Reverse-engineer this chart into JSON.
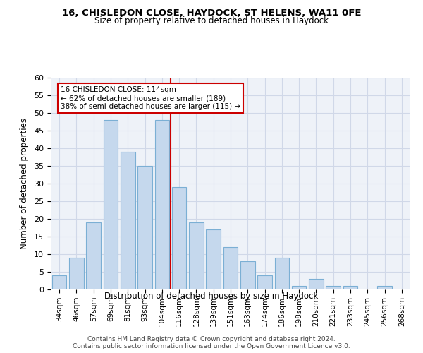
{
  "title1": "16, CHISLEDON CLOSE, HAYDOCK, ST HELENS, WA11 0FE",
  "title2": "Size of property relative to detached houses in Haydock",
  "xlabel": "Distribution of detached houses by size in Haydock",
  "ylabel": "Number of detached properties",
  "footer": "Contains HM Land Registry data © Crown copyright and database right 2024.\nContains public sector information licensed under the Open Government Licence v3.0.",
  "bar_labels": [
    "34sqm",
    "46sqm",
    "57sqm",
    "69sqm",
    "81sqm",
    "93sqm",
    "104sqm",
    "116sqm",
    "128sqm",
    "139sqm",
    "151sqm",
    "163sqm",
    "174sqm",
    "186sqm",
    "198sqm",
    "210sqm",
    "221sqm",
    "233sqm",
    "245sqm",
    "256sqm",
    "268sqm"
  ],
  "bar_values": [
    4,
    9,
    19,
    48,
    39,
    35,
    48,
    29,
    19,
    17,
    12,
    8,
    4,
    9,
    1,
    3,
    1,
    1,
    0,
    1,
    0
  ],
  "bar_color": "#c5d8ed",
  "bar_edge_color": "#7bafd4",
  "grid_color": "#d0d8e8",
  "bg_color": "#eef2f8",
  "property_line_x": 6.5,
  "red_line_color": "#cc0000",
  "annotation_text": "16 CHISLEDON CLOSE: 114sqm\n← 62% of detached houses are smaller (189)\n38% of semi-detached houses are larger (115) →",
  "annotation_box_color": "#cc0000",
  "ylim": [
    0,
    60
  ],
  "yticks": [
    0,
    5,
    10,
    15,
    20,
    25,
    30,
    35,
    40,
    45,
    50,
    55,
    60
  ]
}
